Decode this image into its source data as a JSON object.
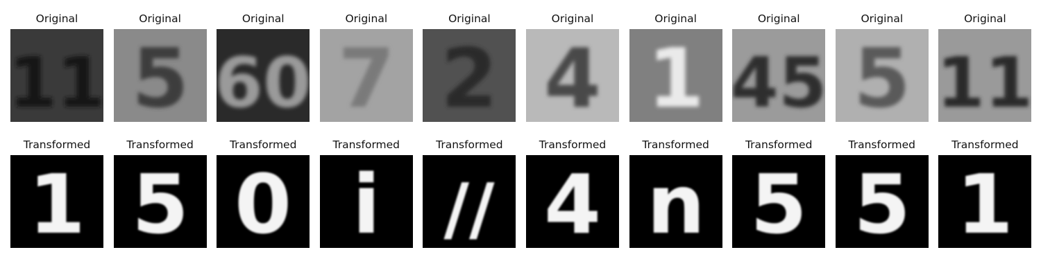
{
  "figure": {
    "rows": [
      {
        "kind": "original",
        "items": [
          {
            "title": "Original",
            "digit": "11",
            "bg": "#3a3a3a",
            "fg": "#151515"
          },
          {
            "title": "Original",
            "digit": "5",
            "bg": "#8a8a8a",
            "fg": "#3e3e3e"
          },
          {
            "title": "Original",
            "digit": "60",
            "bg": "#2a2a2a",
            "fg": "#9a9a9a"
          },
          {
            "title": "Original",
            "digit": "7",
            "bg": "#a3a3a3",
            "fg": "#7a7a7a"
          },
          {
            "title": "Original",
            "digit": "2",
            "bg": "#515151",
            "fg": "#2a2a2a"
          },
          {
            "title": "Original",
            "digit": "4",
            "bg": "#b9b9b9",
            "fg": "#4a4a4a"
          },
          {
            "title": "Original",
            "digit": "1",
            "bg": "#808080",
            "fg": "#eaeaea"
          },
          {
            "title": "Original",
            "digit": "45",
            "bg": "#9b9b9b",
            "fg": "#2f2f2f"
          },
          {
            "title": "Original",
            "digit": "5",
            "bg": "#b0b0b0",
            "fg": "#5a5a5a"
          },
          {
            "title": "Original",
            "digit": "11",
            "bg": "#9a9a9a",
            "fg": "#2a2a2a"
          }
        ]
      },
      {
        "kind": "transformed",
        "items": [
          {
            "title": "Transformed",
            "digit": "1"
          },
          {
            "title": "Transformed",
            "digit": "5"
          },
          {
            "title": "Transformed",
            "digit": "0"
          },
          {
            "title": "Transformed",
            "digit": "i"
          },
          {
            "title": "Transformed",
            "digit": "//"
          },
          {
            "title": "Transformed",
            "digit": "4"
          },
          {
            "title": "Transformed",
            "digit": "n"
          },
          {
            "title": "Transformed",
            "digit": "5"
          },
          {
            "title": "Transformed",
            "digit": "5"
          },
          {
            "title": "Transformed",
            "digit": "1"
          }
        ]
      }
    ]
  }
}
